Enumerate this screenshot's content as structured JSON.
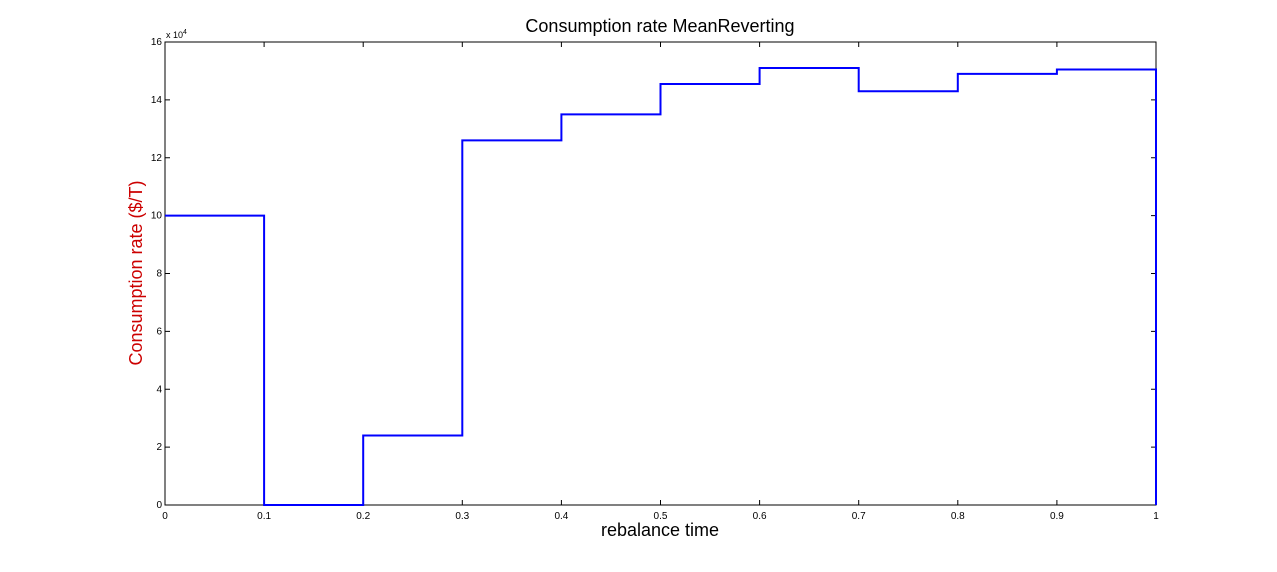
{
  "chart_data": {
    "type": "line",
    "title": "Consumption rate MeanReverting",
    "xlabel": "rebalance time",
    "ylabel": "Consumption rate ($/T)",
    "ylabel_color": "#cc0000",
    "y_exponent_label": "x 10^4",
    "y_exponent_base": "x 10",
    "y_exponent_power": "4",
    "xlim": [
      0,
      1
    ],
    "ylim": [
      0,
      160000
    ],
    "x_ticks": [
      0,
      0.1,
      0.2,
      0.3,
      0.4,
      0.5,
      0.6,
      0.7,
      0.8,
      0.9,
      1
    ],
    "x_tick_labels": [
      "0",
      "0.1",
      "0.2",
      "0.3",
      "0.4",
      "0.5",
      "0.6",
      "0.7",
      "0.8",
      "0.9",
      "1"
    ],
    "y_ticks": [
      0,
      20000,
      40000,
      60000,
      80000,
      100000,
      120000,
      140000,
      160000
    ],
    "y_tick_labels": [
      "0",
      "2",
      "4",
      "6",
      "8",
      "10",
      "12",
      "14",
      "16"
    ],
    "grid": false,
    "line_style": "stairs",
    "series": [
      {
        "color": "#0000ff",
        "x": [
          0,
          0.1,
          0.2,
          0.3,
          0.4,
          0.5,
          0.6,
          0.7,
          0.8,
          0.9,
          1
        ],
        "values": [
          100000,
          0,
          24000,
          126000,
          135000,
          145500,
          151000,
          143000,
          149000,
          150500,
          0
        ]
      }
    ]
  }
}
